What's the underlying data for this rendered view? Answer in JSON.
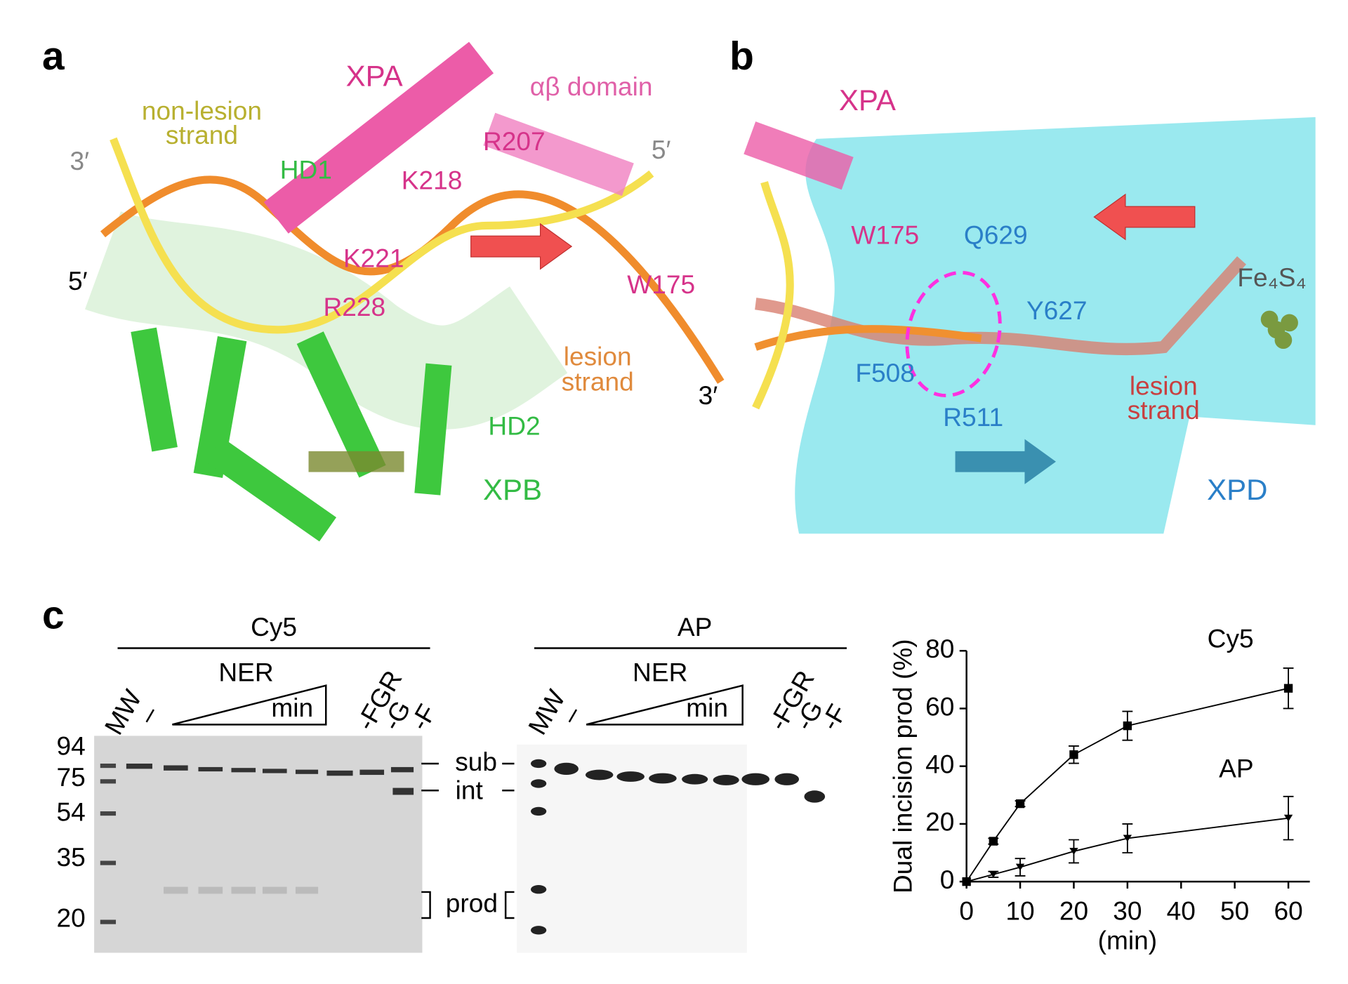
{
  "panel_a": {
    "label": "a",
    "xpa": "XPA",
    "ab_domain": "αβ domain",
    "non_lesion_strand": [
      "non-lesion",
      "strand"
    ],
    "three_prime_left": "3′",
    "five_prime_left": "5′",
    "five_prime_right": "5′",
    "three_prime_right": "3′",
    "hd1": "HD1",
    "hd2": "HD2",
    "xpb": "XPB",
    "residues": [
      "R207",
      "K218",
      "K221",
      "R228",
      "W175"
    ],
    "lesion_strand": [
      "lesion",
      "strand"
    ]
  },
  "panel_b": {
    "label": "b",
    "xpa": "XPA",
    "xpd": "XPD",
    "residues": [
      "W175",
      "Q629",
      "Y627",
      "F508",
      "R511"
    ],
    "cluster": "Fe₄S₄",
    "lesion_strand": [
      "lesion",
      "strand"
    ]
  },
  "panel_c": {
    "label": "c",
    "gels": [
      {
        "title": "Cy5",
        "ner": "NER",
        "min": "min",
        "lanes": [
          "MW",
          "–",
          "-FGR",
          "-G",
          "-F"
        ],
        "markers": [
          "94",
          "75",
          "54",
          "35",
          "20"
        ]
      },
      {
        "title": "AP",
        "ner": "NER",
        "min": "min",
        "lanes": [
          "MW",
          "–",
          "-FGR",
          "-G",
          "-F"
        ]
      }
    ],
    "band_labels": [
      "sub",
      "int",
      "prod"
    ]
  },
  "chart_data": {
    "type": "line",
    "ylabel": "Dual incision prod (%)",
    "xlabel": "(min)",
    "x": [
      0,
      5,
      10,
      20,
      30,
      60
    ],
    "series": [
      {
        "name": "Cy5",
        "color": "#000000",
        "marker": "square",
        "values": [
          0,
          14,
          27,
          44,
          54,
          67
        ],
        "errors": [
          0,
          1,
          1,
          3,
          5,
          7
        ]
      },
      {
        "name": "AP",
        "color": "#000000",
        "marker": "triangle-down",
        "values": [
          0,
          2.5,
          5,
          10.5,
          15,
          22
        ],
        "errors": [
          0,
          1,
          3,
          4,
          5,
          7.5
        ]
      }
    ],
    "xlim": [
      0,
      64
    ],
    "ylim": [
      0,
      80
    ],
    "xticks": [
      0,
      10,
      20,
      30,
      40,
      50,
      60
    ],
    "yticks": [
      0,
      20,
      40,
      60,
      80
    ]
  }
}
